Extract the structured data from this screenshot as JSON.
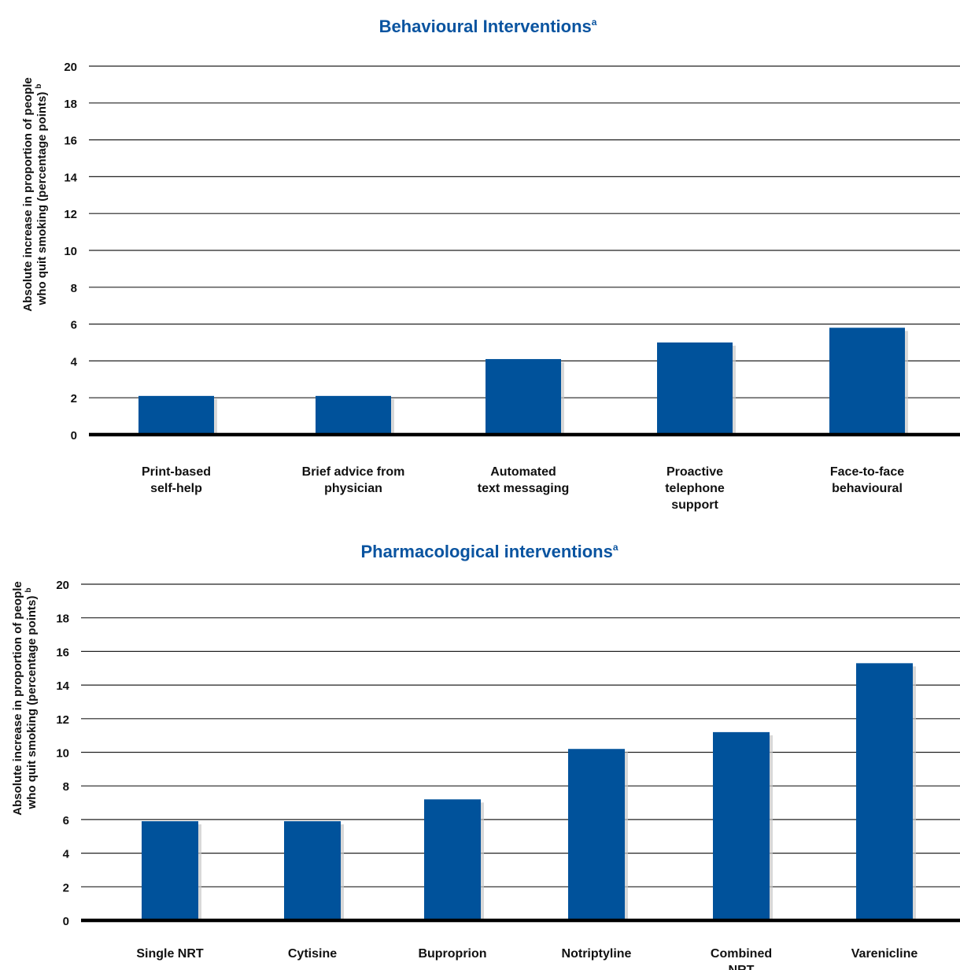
{
  "colors": {
    "bar": "#00529b",
    "title": "#0a54a0",
    "grid": "#222222",
    "axis": "#000000"
  },
  "chart_data": [
    {
      "type": "bar",
      "title": "Behavioural Interventions",
      "title_superscript": "a",
      "ylabel": [
        "Absolute increase in proportion of people",
        "who quit smoking (percentage points)"
      ],
      "ylabel_superscript": "b",
      "ylim": [
        0,
        20
      ],
      "ticks": [
        0,
        2,
        4,
        6,
        8,
        10,
        12,
        14,
        16,
        18,
        20
      ],
      "categories": [
        [
          "Print-based",
          "self-help"
        ],
        [
          "Brief advice from",
          "physician"
        ],
        [
          "Automated",
          "text messaging"
        ],
        [
          "Proactive",
          "telephone",
          "support"
        ],
        [
          "Face-to-face",
          "behavioural"
        ]
      ],
      "values": [
        2.1,
        2.1,
        4.1,
        5.0,
        5.8
      ],
      "grid": true,
      "legend": "none"
    },
    {
      "type": "bar",
      "title": "Pharmacological interventions",
      "title_superscript": "a",
      "ylabel": [
        "Absolute increase in proportion of people",
        "who quit smoking (percentage points)"
      ],
      "ylabel_superscript": "b",
      "ylim": [
        0,
        20
      ],
      "ticks": [
        0,
        2,
        4,
        6,
        8,
        10,
        12,
        14,
        16,
        18,
        20
      ],
      "categories": [
        [
          "Single NRT"
        ],
        [
          "Cytisine"
        ],
        [
          "Buproprion"
        ],
        [
          "Notriptyline"
        ],
        [
          "Combined",
          "NRT"
        ],
        [
          "Varenicline"
        ]
      ],
      "values": [
        5.9,
        5.9,
        7.2,
        10.2,
        11.2,
        15.3
      ],
      "grid": true,
      "legend": "none"
    }
  ]
}
